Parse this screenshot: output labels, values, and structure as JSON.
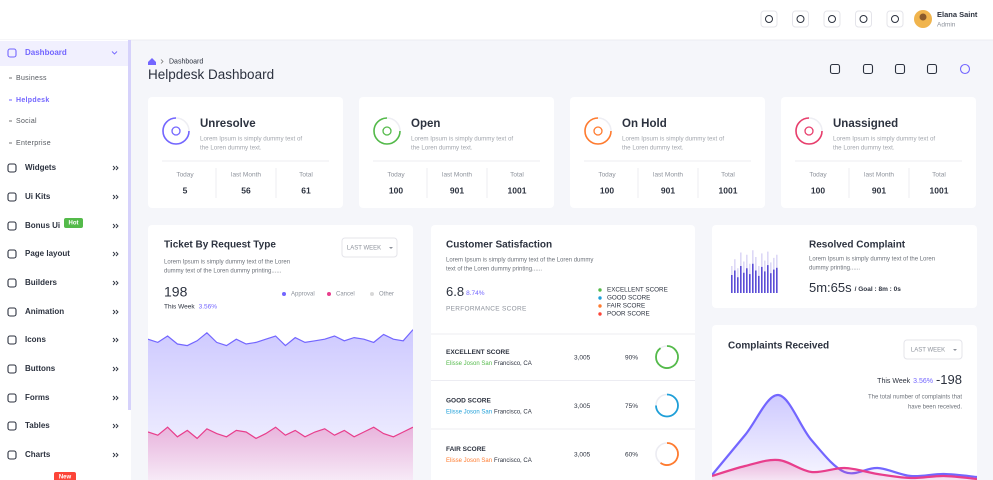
{
  "header": {
    "user_name": "Elana Saint",
    "user_role": "Admin"
  },
  "sidebar": {
    "items": [
      {
        "label": "Dashboard",
        "children": [
          "Business",
          "Helpdesk",
          "Social",
          "Enterprise"
        ]
      },
      {
        "label": "Widgets"
      },
      {
        "label": "Ui Kits"
      },
      {
        "label": "Bonus Ui",
        "badge": "Hot"
      },
      {
        "label": "Page layout"
      },
      {
        "label": "Builders"
      },
      {
        "label": "Animation"
      },
      {
        "label": "Icons"
      },
      {
        "label": "Buttons"
      },
      {
        "label": "Forms"
      },
      {
        "label": "Tables"
      },
      {
        "label": "Charts"
      }
    ],
    "bottom_badge": "New"
  },
  "breadcrumb": "Dashboard",
  "page_title": "Helpdesk Dashboard",
  "stat_cards": [
    {
      "title": "Unresolve",
      "color": "#7366ff",
      "description_lines": [
        "Lorem Ipsum is simply dummy text of",
        "the Loren dummy text."
      ],
      "stats": [
        {
          "label": "Today",
          "value": 5
        },
        {
          "label": "last Month",
          "value": 56
        },
        {
          "label": "Total",
          "value": 61
        }
      ]
    },
    {
      "title": "Open",
      "color": "#54ba4a",
      "description_lines": [
        "Lorem Ipsum is simply dummy text of",
        "the Loren dummy text."
      ],
      "stats": [
        {
          "label": "Today",
          "value": 100
        },
        {
          "label": "last Month",
          "value": 901
        },
        {
          "label": "Total",
          "value": 1001
        }
      ]
    },
    {
      "title": "On Hold",
      "color": "#ff7b2f",
      "description_lines": [
        "Lorem Ipsum is simply dummy text of",
        "the Loren dummy text."
      ],
      "stats": [
        {
          "label": "Today",
          "value": 100
        },
        {
          "label": "last Month",
          "value": 901
        },
        {
          "label": "Total",
          "value": 1001
        }
      ]
    },
    {
      "title": "Unassigned",
      "color": "#e83e6c",
      "description_lines": [
        "Lorem Ipsum is simply dummy text of",
        "the Loren dummy text."
      ],
      "stats": [
        {
          "label": "Today",
          "value": 100
        },
        {
          "label": "last Month",
          "value": 901
        },
        {
          "label": "Total",
          "value": 1001
        }
      ]
    }
  ],
  "ticket": {
    "title": "Ticket By Request Type",
    "description_lines": [
      "Lorem Ipsum is simply dummy text of the Loren",
      "dummy text of the Loren dummy printing......"
    ],
    "filter": "LAST WEEK",
    "total": 198,
    "period": "This Week",
    "change": "3.56%",
    "chart": {
      "ylim": [
        0,
        100
      ],
      "series": [
        {
          "name": "Approval",
          "color": "#7366ff",
          "values": [
            88,
            86,
            90,
            85,
            84,
            87,
            92,
            86,
            84,
            88,
            85,
            86,
            88,
            90,
            84,
            89,
            86,
            87,
            88,
            90,
            87,
            89,
            88,
            86,
            91,
            88,
            87,
            94
          ]
        },
        {
          "name": "Cancel",
          "color": "#e83e8c",
          "values": [
            30,
            28,
            33,
            27,
            31,
            26,
            32,
            29,
            27,
            31,
            30,
            26,
            29,
            33,
            28,
            31,
            27,
            30,
            32,
            28,
            31,
            27,
            30,
            33,
            29,
            27,
            30,
            33
          ]
        }
      ],
      "extra_legend": {
        "name": "Other",
        "color": "#d8d8d8"
      }
    }
  },
  "satisfaction": {
    "title": "Customer Satisfaction",
    "description_lines": [
      "Lorem Ipsum is simply dummy text of the Loren dummy",
      "text of the Loren dummy printing......"
    ],
    "score": 6.8,
    "change": "8.74%",
    "score_label": "PERFORMANCE SCORE",
    "legend": [
      {
        "name": "EXCELLENT SCORE",
        "color": "#54ba4a"
      },
      {
        "name": "GOOD SCORE",
        "color": "#1e9fd8"
      },
      {
        "name": "FAIR SCORE",
        "color": "#ff7b2f"
      },
      {
        "name": "POOR SCORE",
        "color": "#fc4438"
      }
    ],
    "rows": [
      {
        "label": "EXCELLENT SCORE",
        "name": "Elisse Joson San",
        "location": "Francisco, CA",
        "count": "3,005",
        "percent": 90,
        "percent_label": "90%",
        "color": "#54ba4a"
      },
      {
        "label": "GOOD SCORE",
        "name": "Elisse Joson San",
        "location": "Francisco, CA",
        "count": "3,005",
        "percent": 75,
        "percent_label": "75%",
        "color": "#1e9fd8"
      },
      {
        "label": "FAIR SCORE",
        "name": "Elisse Joson San",
        "location": "Francisco, CA",
        "count": "3,005",
        "percent": 60,
        "percent_label": "60%",
        "color": "#ff7b2f"
      }
    ]
  },
  "resolved": {
    "title": "Resolved Complaint",
    "description_lines": [
      "Lorem Ipsum is simply dummy text of the Loren",
      "dummy printing......"
    ],
    "time": "5m:65s",
    "goal": "/ Goal : 8m : 0s",
    "bars": {
      "ylim": [
        0,
        100
      ],
      "series": [
        {
          "color": "#ddd8f6",
          "values": [
            60,
            75,
            55,
            90,
            70,
            85,
            65,
            95,
            80,
            60,
            88,
            72,
            92,
            68,
            78,
            85
          ]
        },
        {
          "color": "#5b4ed6",
          "values": [
            40,
            50,
            35,
            60,
            45,
            55,
            42,
            65,
            50,
            38,
            58,
            48,
            62,
            44,
            52,
            56
          ]
        }
      ]
    }
  },
  "complaints": {
    "title": "Complaints Received",
    "filter": "LAST WEEK",
    "period": "This Week",
    "change": "3.56%",
    "total": -198,
    "description_lines": [
      "The total number of complaints that",
      "have been received."
    ],
    "chart": {
      "ylim": [
        0,
        100
      ],
      "series": [
        {
          "color": "#7366ff",
          "values": [
            5,
            45,
            85,
            40,
            8,
            12,
            4,
            6,
            3
          ]
        },
        {
          "color": "#e83e8c",
          "values": [
            4,
            14,
            20,
            8,
            12,
            6,
            2,
            4,
            1
          ]
        }
      ]
    }
  }
}
